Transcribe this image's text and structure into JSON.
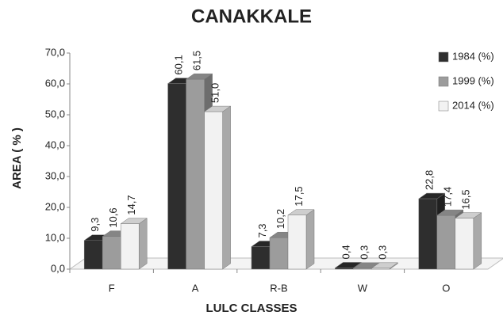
{
  "chart_data": {
    "type": "bar3d",
    "title": "CANAKKALE",
    "x_label": "LULC CLASSES",
    "y_label": "AREA ( % )",
    "categories": [
      "F",
      "A",
      "R-B",
      "W",
      "O"
    ],
    "series": [
      {
        "name": "1984 (%)",
        "color": "#2e2e2e",
        "values": [
          9.3,
          60.1,
          7.3,
          0.4,
          22.8
        ],
        "value_labels": [
          "9,3",
          "60,1",
          "7,3",
          "0,4",
          "22,8"
        ]
      },
      {
        "name": "1999 (%)",
        "color": "#9c9c9c",
        "values": [
          10.6,
          61.5,
          10.2,
          0.3,
          17.4
        ],
        "value_labels": [
          "10,6",
          "61,5",
          "10,2",
          "0,3",
          "17,4"
        ]
      },
      {
        "name": "2014 (%)",
        "color": "#f2f2f2",
        "values": [
          14.7,
          51.0,
          17.5,
          0.3,
          16.5
        ],
        "value_labels": [
          "14,7",
          "51,0",
          "17,5",
          "0,3",
          "16,5"
        ]
      }
    ],
    "ylim": [
      0,
      70
    ],
    "yticks": [
      {
        "value": 0,
        "label": "0,0"
      },
      {
        "value": 10,
        "label": "10,0"
      },
      {
        "value": 20,
        "label": "20,0"
      },
      {
        "value": 30,
        "label": "30,0"
      },
      {
        "value": 40,
        "label": "40,0"
      },
      {
        "value": 50,
        "label": "50,0"
      },
      {
        "value": 60,
        "label": "60,0"
      },
      {
        "value": 70,
        "label": "70,0"
      }
    ],
    "legend": "right"
  }
}
